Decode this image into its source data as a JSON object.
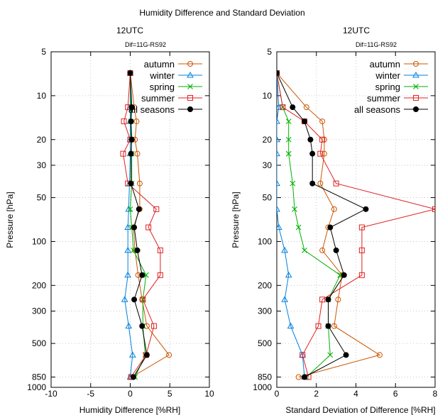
{
  "figure_title": "Humidity Difference and Standard Deviation",
  "chart_data": [
    {
      "type": "line",
      "title": "12UTC",
      "subtitle": "Dif=11G-RS92",
      "xlabel": "Humidity Difference [%RH]",
      "ylabel": "Pressure [hPa]",
      "xlim": [
        -10,
        10
      ],
      "ylim": [
        1000,
        5
      ],
      "y_scale": "log",
      "x_ticks": [
        -10,
        -5,
        0,
        5,
        10
      ],
      "x_tick_labels": [
        "-10",
        "-5",
        "0",
        "5",
        "10"
      ],
      "y_ticks": [
        5,
        10,
        20,
        30,
        50,
        100,
        200,
        300,
        500,
        850,
        1000
      ],
      "y_tick_labels": [
        "5",
        "10",
        "20",
        "30",
        "50",
        "100",
        "200",
        "300",
        "500",
        "850",
        "1000"
      ],
      "grid": true,
      "legend_position": "top-right",
      "y": [
        7,
        12,
        15,
        20,
        25,
        40,
        60,
        80,
        115,
        170,
        250,
        380,
        600,
        850
      ],
      "series": [
        {
          "name": "autumn",
          "color": "#cc5500",
          "marker": "circle",
          "x": [
            0.0,
            0.5,
            0.8,
            0.6,
            0.9,
            1.2,
            1.2,
            0.4,
            0.6,
            1.0,
            1.5,
            2.1,
            4.9,
            0.2
          ]
        },
        {
          "name": "winter",
          "color": "#0080e0",
          "marker": "triangle",
          "x": [
            0.0,
            0.0,
            0.0,
            0.0,
            0.0,
            -0.1,
            -0.2,
            -0.3,
            -0.3,
            -0.3,
            -0.7,
            -0.2,
            0.3,
            0.0
          ]
        },
        {
          "name": "spring",
          "color": "#00b000",
          "marker": "x",
          "x": [
            0.0,
            0.1,
            0.1,
            0.1,
            0.2,
            0.2,
            0.0,
            0.2,
            0.4,
            2.0,
            1.6,
            1.6,
            1.9,
            0.6
          ]
        },
        {
          "name": "summer",
          "color": "#e02020",
          "marker": "square",
          "x": [
            0.0,
            -0.3,
            -0.8,
            0.0,
            -0.9,
            -0.3,
            3.3,
            2.3,
            3.8,
            3.8,
            1.6,
            3.0,
            2.0,
            0.1
          ]
        },
        {
          "name": "all seasons",
          "color": "#000000",
          "marker": "filled-circle",
          "x": [
            0.0,
            0.2,
            0.1,
            0.2,
            0.1,
            0.1,
            1.1,
            0.5,
            0.9,
            1.5,
            0.5,
            1.5,
            2.1,
            0.4
          ]
        }
      ]
    },
    {
      "type": "line",
      "title": "12UTC",
      "subtitle": "Dif=11G-RS92",
      "xlabel": "Standard Deviation of Difference [%RH]",
      "ylabel": "Pressure [hPa]",
      "xlim": [
        0,
        8
      ],
      "ylim": [
        1000,
        5
      ],
      "y_scale": "log",
      "x_ticks": [
        0,
        2,
        4,
        6,
        8
      ],
      "x_tick_labels": [
        "0",
        "2",
        "4",
        "6",
        "8"
      ],
      "y_ticks": [
        5,
        10,
        20,
        30,
        50,
        100,
        200,
        300,
        500,
        850,
        1000
      ],
      "y_tick_labels": [
        "5",
        "10",
        "20",
        "30",
        "50",
        "100",
        "200",
        "300",
        "500",
        "850",
        "1000"
      ],
      "grid": true,
      "legend_position": "top-right",
      "y": [
        7,
        12,
        15,
        20,
        25,
        40,
        60,
        80,
        115,
        170,
        250,
        380,
        600,
        850
      ],
      "series": [
        {
          "name": "autumn",
          "color": "#cc5500",
          "marker": "circle",
          "x": [
            0.0,
            1.5,
            2.3,
            2.4,
            2.4,
            2.2,
            2.9,
            2.6,
            2.3,
            3.3,
            3.1,
            2.9,
            5.2,
            1.1
          ]
        },
        {
          "name": "winter",
          "color": "#0080e0",
          "marker": "triangle",
          "x": [
            0.0,
            0.1,
            0.0,
            0.0,
            0.0,
            0.0,
            0.0,
            0.1,
            0.4,
            0.6,
            0.4,
            0.7,
            1.3,
            1.4
          ]
        },
        {
          "name": "spring",
          "color": "#00b000",
          "marker": "x",
          "x": [
            0.0,
            0.3,
            0.6,
            0.6,
            0.6,
            0.8,
            0.9,
            1.1,
            1.4,
            3.2,
            2.6,
            2.6,
            2.7,
            1.5
          ]
        },
        {
          "name": "summer",
          "color": "#e02020",
          "marker": "square",
          "x": [
            0.0,
            0.3,
            1.4,
            2.3,
            2.2,
            3.0,
            8.0,
            4.3,
            4.3,
            4.3,
            2.3,
            2.1,
            1.3,
            1.6
          ]
        },
        {
          "name": "all seasons",
          "color": "#000000",
          "marker": "filled-circle",
          "x": [
            0.0,
            0.8,
            1.4,
            1.7,
            1.8,
            1.8,
            4.5,
            2.7,
            3.0,
            3.4,
            2.6,
            2.6,
            3.5,
            1.4
          ]
        }
      ]
    }
  ]
}
